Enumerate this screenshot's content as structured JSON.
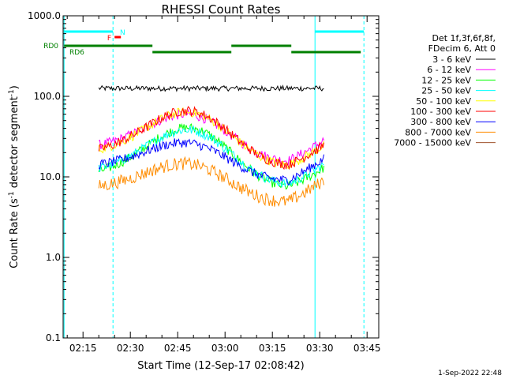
{
  "chart_data": {
    "type": "line",
    "title": "RHESSI Count Rates",
    "xlabel": "Start Time (12-Sep-17 02:08:42)",
    "ylabel_main": "Count Rate (s",
    "ylabel_sup1": "-1",
    "ylabel_mid": " detector segment",
    "ylabel_sup2": "-1",
    "ylabel_end": ")",
    "y_scale": "log",
    "ylim": [
      0.1,
      1000
    ],
    "y_ticks": [
      {
        "value": 0.1,
        "label": "0.1"
      },
      {
        "value": 1,
        "label": "1.0"
      },
      {
        "value": 10,
        "label": "10.0"
      },
      {
        "value": 100,
        "label": "100.0"
      },
      {
        "value": 1000,
        "label": "1000.0"
      }
    ],
    "xlim": [
      "02:08:42",
      "03:48:42"
    ],
    "x_ticks": [
      "02:15",
      "02:30",
      "02:45",
      "03:00",
      "03:15",
      "03:30",
      "03:45"
    ],
    "legend_header": [
      "Det 1f,3f,6f,8f,",
      "FDecim 6, Att 0"
    ],
    "legend_position": "right, outside plot",
    "series": [
      {
        "name": "3 - 6 keV",
        "color": "#000000",
        "profile": "flat",
        "peak": 125,
        "base": 120
      },
      {
        "name": "6 - 12 keV",
        "color": "#ff00ff",
        "profile": "hump",
        "peak": 70,
        "base": 22
      },
      {
        "name": "12 - 25 keV",
        "color": "#00ff00",
        "profile": "hump",
        "peak": 48,
        "base": 10
      },
      {
        "name": "25 - 50 keV",
        "color": "#00ffff",
        "profile": "hump",
        "peak": 45,
        "base": 11
      },
      {
        "name": "50 - 100 keV",
        "color": "#ffff00",
        "profile": "hump",
        "peak": 75,
        "base": 19
      },
      {
        "name": "100 - 300 keV",
        "color": "#ff0000",
        "profile": "hump",
        "peak": 78,
        "base": 19
      },
      {
        "name": "300 - 800 keV",
        "color": "#0000ff",
        "profile": "hump",
        "peak": 31,
        "base": 13
      },
      {
        "name": "800 - 7000 keV",
        "color": "#ff8c00",
        "profile": "hump",
        "peak": 17,
        "base": 7
      },
      {
        "name": "7000 - 15000 keV",
        "color": "#a0522d",
        "profile": "none",
        "peak": 0,
        "base": 0
      }
    ],
    "data_start": "02:20:00",
    "data_end": "03:31:30",
    "peak_time": "02:50:00",
    "trough_time": "03:12:00",
    "vertical_lines": [
      {
        "time": "02:09:00",
        "color": "#00ffff",
        "style": "solid"
      },
      {
        "time": "02:24:30",
        "color": "#00ffff",
        "style": "dashed"
      },
      {
        "time": "03:28:30",
        "color": "#00ffff",
        "style": "solid"
      },
      {
        "time": "03:44:00",
        "color": "#00ffff",
        "style": "dashed"
      }
    ],
    "flags": [
      {
        "label": "",
        "color": "#00ffff",
        "segments": [
          [
            "02:09:00",
            "02:24:30"
          ],
          [
            "03:28:30",
            "03:44:00"
          ]
        ],
        "level": 40
      },
      {
        "label": "N",
        "color": "#00ffff",
        "segments": [],
        "level": 40
      },
      {
        "label": "F",
        "color": "#ff0000",
        "segments": [
          [
            "02:25:00",
            "02:27:00"
          ]
        ],
        "level": 47
      },
      {
        "label": "RD0",
        "color": "#008000",
        "segments": [
          [
            "02:09:00",
            "02:37:00"
          ],
          [
            "03:02:00",
            "03:21:00"
          ]
        ],
        "level": 58
      },
      {
        "label": "RD6",
        "color": "#008000",
        "segments": [
          [
            "02:37:00",
            "03:02:00"
          ],
          [
            "03:21:00",
            "03:43:00"
          ]
        ],
        "level": 66
      }
    ]
  },
  "footer": {
    "timestamp": "1-Sep-2022 22:48"
  }
}
